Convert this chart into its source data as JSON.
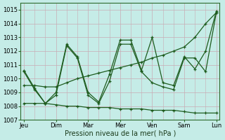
{
  "xlabel": "Pression niveau de la mer( hPa )",
  "bg_color": "#c5ece7",
  "grid_color": "#c8aab4",
  "line_color": "#1e5c1e",
  "day_labels": [
    "Jeu",
    "Dim",
    "Mar",
    "Mer",
    "Ven",
    "Sam",
    "Lun"
  ],
  "day_positions": [
    0,
    3,
    6,
    9,
    12,
    15,
    18
  ],
  "ylim": [
    1007.0,
    1015.5
  ],
  "yticks": [
    1007,
    1008,
    1009,
    1010,
    1011,
    1012,
    1013,
    1014,
    1015
  ],
  "series1_x": [
    0,
    1,
    2,
    3,
    4,
    5,
    6,
    7,
    8,
    9,
    10,
    11,
    12,
    13,
    14,
    15,
    16,
    17,
    18
  ],
  "series1_y": [
    1010.6,
    1009.3,
    1008.2,
    1009.0,
    1012.5,
    1011.6,
    1009.0,
    1008.3,
    1010.3,
    1012.8,
    1012.8,
    1010.6,
    1013.0,
    1009.7,
    1009.5,
    1011.6,
    1010.7,
    1012.0,
    1014.9
  ],
  "series2_x": [
    0,
    1,
    2,
    3,
    4,
    5,
    6,
    7,
    8,
    9,
    10,
    11,
    12,
    13,
    14,
    15,
    16,
    17,
    18
  ],
  "series2_y": [
    1010.5,
    1009.2,
    1008.2,
    1008.8,
    1012.4,
    1011.5,
    1008.8,
    1008.2,
    1009.8,
    1012.5,
    1012.5,
    1010.5,
    1009.7,
    1009.4,
    1009.2,
    1011.5,
    1011.5,
    1010.5,
    1014.8
  ],
  "series3_x": [
    0,
    1,
    2,
    3,
    4,
    5,
    6,
    7,
    8,
    9,
    10,
    11,
    12,
    13,
    14,
    15,
    16,
    17,
    18
  ],
  "series3_y": [
    1009.5,
    1009.5,
    1009.4,
    1009.4,
    1009.7,
    1010.0,
    1010.2,
    1010.4,
    1010.6,
    1010.8,
    1011.0,
    1011.2,
    1011.5,
    1011.7,
    1012.0,
    1012.3,
    1013.0,
    1014.0,
    1014.8
  ],
  "series4_x": [
    0,
    1,
    2,
    3,
    4,
    5,
    6,
    7,
    8,
    9,
    10,
    11,
    12,
    13,
    14,
    15,
    16,
    17,
    18
  ],
  "series4_y": [
    1008.2,
    1008.2,
    1008.2,
    1008.1,
    1008.0,
    1008.0,
    1007.9,
    1007.9,
    1007.9,
    1007.8,
    1007.8,
    1007.8,
    1007.7,
    1007.7,
    1007.7,
    1007.6,
    1007.5,
    1007.5,
    1007.5
  ]
}
